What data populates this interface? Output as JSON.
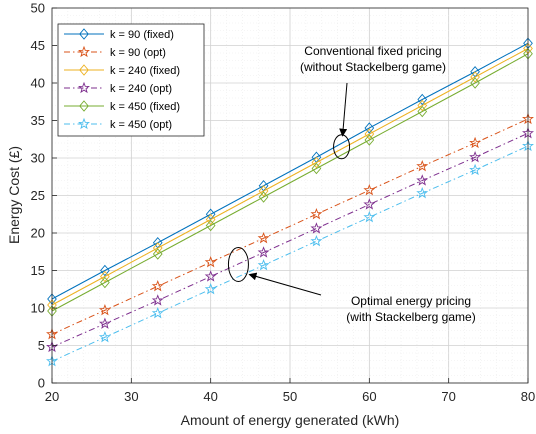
{
  "chart_data": {
    "type": "line",
    "xlabel": "Amount of energy generated (kWh)",
    "ylabel": "Energy Cost (£)",
    "xlim": [
      20,
      80
    ],
    "ylim": [
      0,
      50
    ],
    "xticks": [
      20,
      30,
      40,
      50,
      60,
      70,
      80
    ],
    "yticks": [
      0,
      5,
      10,
      15,
      20,
      25,
      30,
      35,
      40,
      45,
      50
    ],
    "grid": true,
    "legend_position": "top-left",
    "x": [
      20,
      26.67,
      33.33,
      40,
      46.67,
      53.33,
      60,
      66.67,
      73.33,
      80
    ],
    "series": [
      {
        "name": "k = 90 (fixed)",
        "color": "#0072BD",
        "marker": "diamond",
        "dash": "solid",
        "values": [
          11.2,
          15.0,
          18.7,
          22.5,
          26.3,
          30.1,
          34.0,
          37.8,
          41.5,
          45.3
        ]
      },
      {
        "name": "k = 90 (opt)",
        "color": "#D95319",
        "marker": "star",
        "dash": "dashdot",
        "values": [
          6.5,
          9.7,
          12.9,
          16.1,
          19.3,
          22.5,
          25.7,
          28.9,
          32.0,
          35.2
        ]
      },
      {
        "name": "k = 240 (fixed)",
        "color": "#EDB120",
        "marker": "diamond",
        "dash": "solid",
        "values": [
          10.4,
          14.2,
          18.0,
          21.8,
          25.6,
          29.4,
          33.2,
          37.0,
          40.8,
          44.6
        ]
      },
      {
        "name": "k = 240 (opt)",
        "color": "#7E2F8E",
        "marker": "star",
        "dash": "dashdot",
        "values": [
          4.8,
          7.9,
          11.0,
          14.2,
          17.4,
          20.6,
          23.8,
          27.0,
          30.1,
          33.3
        ]
      },
      {
        "name": "k = 450 (fixed)",
        "color": "#77AC30",
        "marker": "diamond",
        "dash": "solid",
        "values": [
          9.6,
          13.4,
          17.2,
          21.0,
          24.8,
          28.6,
          32.4,
          36.2,
          40.0,
          43.9
        ]
      },
      {
        "name": "k = 450 (opt)",
        "color": "#4DBEEE",
        "marker": "star",
        "dash": "dashdot",
        "values": [
          2.9,
          6.1,
          9.3,
          12.5,
          15.7,
          18.9,
          22.1,
          25.3,
          28.4,
          31.6
        ]
      }
    ],
    "annotations": [
      {
        "lines": [
          "Conventional fixed pricing",
          "(without Stackelberg game)"
        ],
        "points_to": {
          "x": 56.5,
          "y": 31.5
        }
      },
      {
        "lines": [
          "Optimal energy pricing",
          "(with Stackelberg game)"
        ],
        "points_to": {
          "x": 43.5,
          "y": 15.8
        }
      }
    ]
  }
}
